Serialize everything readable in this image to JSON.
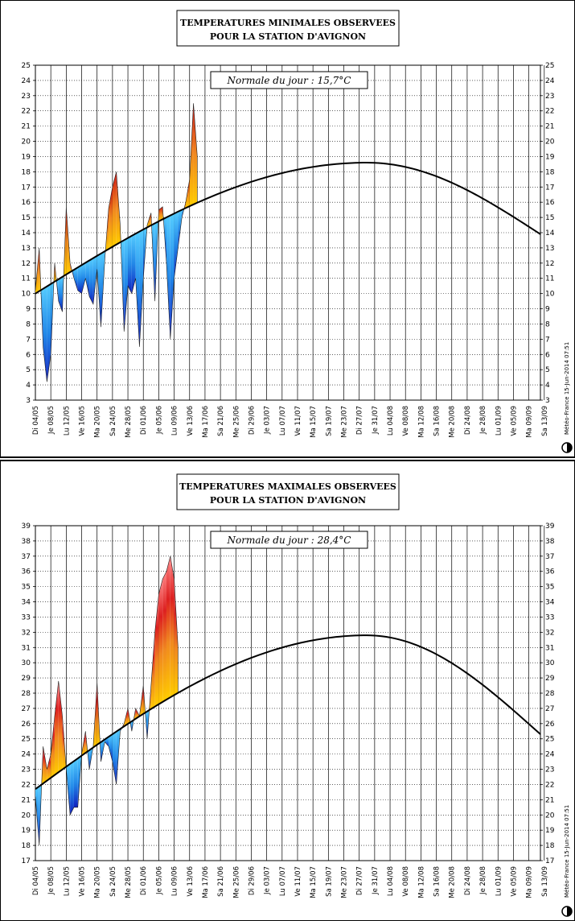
{
  "charts": [
    {
      "id": "min",
      "title_line1": "TEMPERATURES MINIMALES OBSERVEES",
      "title_line2": "POUR LA STATION D'AVIGNON",
      "normal_label": "Normale du jour : 15,7°C",
      "credit": "Météo-France 15-Jun-2014 07:51"
    },
    {
      "id": "max",
      "title_line1": "TEMPERATURES MAXIMALES OBSERVEES",
      "title_line2": "POUR LA STATION D'AVIGNON",
      "normal_label": "Normale du jour : 28,4°C",
      "credit": "Météo-France 15-Jun-2014 07:51"
    }
  ],
  "chart_data": [
    {
      "type": "area",
      "title": "TEMPERATURES MINIMALES OBSERVEES POUR LA STATION D'AVIGNON",
      "ylim": [
        3,
        25
      ],
      "grid": true,
      "x_start": "2014-05-04",
      "x_days": 132,
      "x_ticks": [
        "Di 04/05",
        "Je 08/05",
        "Lu 12/05",
        "Ve 16/05",
        "Ma 20/05",
        "Sa 24/05",
        "Me 28/05",
        "Di 01/06",
        "Je 05/06",
        "Lu 09/06",
        "Ve 13/06",
        "Ma 17/06",
        "Sa 21/06",
        "Me 25/06",
        "Di 29/06",
        "Je 03/07",
        "Lu 07/07",
        "Ve 11/07",
        "Ma 15/07",
        "Sa 19/07",
        "Me 23/07",
        "Di 27/07",
        "Je 31/07",
        "Lu 04/08",
        "Ve 08/08",
        "Ma 12/08",
        "Sa 16/08",
        "Me 20/08",
        "Di 24/08",
        "Je 28/08",
        "Lu 01/09",
        "Ve 05/09",
        "Ma 09/09",
        "Sa 13/09"
      ],
      "normal": {
        "start": 10.0,
        "peak": 18.6,
        "peak_day": 86,
        "end": 13.9
      },
      "observed": [
        10.2,
        13.0,
        6.5,
        4.2,
        6.0,
        12.0,
        9.5,
        8.8,
        15.7,
        12.0,
        11.0,
        10.2,
        10.0,
        11.0,
        9.8,
        9.3,
        11.6,
        7.8,
        12.2,
        15.6,
        17.0,
        18.0,
        14.5,
        7.5,
        10.5,
        10.0,
        11.0,
        6.5,
        11.0,
        14.5,
        15.3,
        9.5,
        15.5,
        15.7,
        12.0,
        7.0,
        11.0,
        13.0,
        15.0,
        16.0,
        17.5,
        22.5,
        19.0
      ],
      "last_day": 42,
      "normal_today": 15.7
    },
    {
      "type": "area",
      "title": "TEMPERATURES MAXIMALES OBSERVEES POUR LA STATION D'AVIGNON",
      "ylim": [
        17,
        39
      ],
      "grid": true,
      "x_start": "2014-05-04",
      "x_days": 132,
      "x_ticks": [
        "Di 04/05",
        "Je 08/05",
        "Lu 12/05",
        "Ve 16/05",
        "Ma 20/05",
        "Sa 24/05",
        "Me 28/05",
        "Di 01/06",
        "Je 05/06",
        "Lu 09/06",
        "Ve 13/06",
        "Ma 17/06",
        "Sa 21/06",
        "Me 25/06",
        "Di 29/06",
        "Je 03/07",
        "Lu 07/07",
        "Ve 11/07",
        "Ma 15/07",
        "Sa 19/07",
        "Me 23/07",
        "Di 27/07",
        "Je 31/07",
        "Lu 04/08",
        "Ve 08/08",
        "Ma 12/08",
        "Sa 16/08",
        "Me 20/08",
        "Di 24/08",
        "Je 28/08",
        "Lu 01/09",
        "Ve 05/09",
        "Ma 09/09",
        "Sa 13/09"
      ],
      "normal": {
        "start": 21.7,
        "peak": 31.8,
        "peak_day": 86,
        "end": 25.3
      },
      "observed": [
        21.2,
        18.0,
        24.5,
        23.0,
        24.0,
        26.5,
        28.8,
        26.5,
        23.0,
        20.0,
        20.5,
        20.5,
        24.0,
        25.5,
        23.0,
        24.5,
        28.7,
        23.5,
        24.8,
        24.5,
        23.5,
        22.0,
        25.5,
        26.0,
        27.0,
        25.5,
        27.0,
        26.5,
        28.5,
        25.0,
        28.5,
        32.0,
        34.5,
        35.5,
        36.0,
        37.0,
        35.5,
        31.0
      ],
      "last_day": 37,
      "normal_today": 28.4
    }
  ]
}
